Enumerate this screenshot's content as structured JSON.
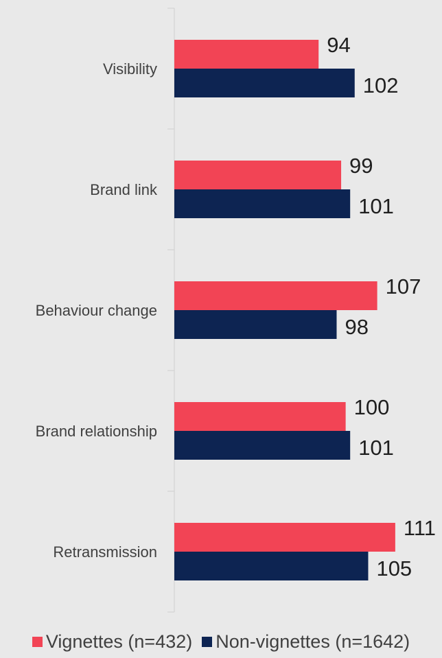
{
  "chart_data": {
    "type": "bar",
    "orientation": "horizontal",
    "categories": [
      "Visibility",
      "Brand link",
      "Behaviour change",
      "Brand relationship",
      "Retransmission"
    ],
    "series": [
      {
        "name": "Vignettes (n=432)",
        "values": [
          94,
          99,
          107,
          100,
          111
        ],
        "color": "#f24455"
      },
      {
        "name": "Non-vignettes (n=1642)",
        "values": [
          102,
          101,
          98,
          101,
          105
        ],
        "color": "#0d2452"
      }
    ],
    "xlim": [
      62,
      120
    ],
    "legend_position": "bottom",
    "grid": false
  }
}
